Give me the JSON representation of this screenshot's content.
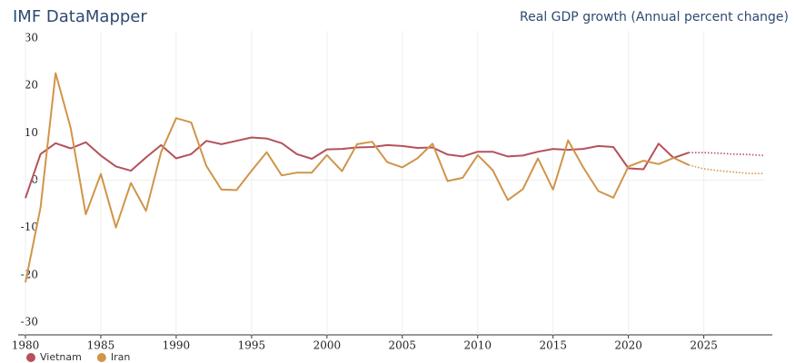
{
  "chart_data": {
    "type": "line",
    "site": "IMF DataMapper",
    "title": "Real GDP growth (Annual percent change)",
    "x": [
      1980,
      1981,
      1982,
      1983,
      1984,
      1985,
      1986,
      1987,
      1988,
      1989,
      1990,
      1991,
      1992,
      1993,
      1994,
      1995,
      1996,
      1997,
      1998,
      1999,
      2000,
      2001,
      2002,
      2003,
      2004,
      2005,
      2006,
      2007,
      2008,
      2009,
      2010,
      2011,
      2012,
      2013,
      2014,
      2015,
      2016,
      2017,
      2018,
      2019,
      2020,
      2021,
      2022,
      2023,
      2024,
      2025,
      2026,
      2027,
      2028,
      2029
    ],
    "series": [
      {
        "name": "Vietnam",
        "color": "#b5515b",
        "values": [
          -3.8,
          5.5,
          7.8,
          6.7,
          8.0,
          5.2,
          2.9,
          2.0,
          4.8,
          7.4,
          4.6,
          5.5,
          8.3,
          7.6,
          8.3,
          9.0,
          8.8,
          7.8,
          5.5,
          4.5,
          6.5,
          6.6,
          6.9,
          7.0,
          7.4,
          7.2,
          6.8,
          6.9,
          5.4,
          5.0,
          6.0,
          6.0,
          5.0,
          5.2,
          6.0,
          6.6,
          6.4,
          6.6,
          7.2,
          7.0,
          2.5,
          2.3,
          7.7,
          4.7,
          5.8,
          5.8,
          5.7,
          5.5,
          5.4,
          5.2
        ]
      },
      {
        "name": "Iran",
        "color": "#d0954a",
        "values": [
          -21.6,
          -5.8,
          22.6,
          11.0,
          -7.2,
          1.3,
          -10.0,
          -0.6,
          -6.5,
          5.9,
          13.1,
          12.2,
          3.0,
          -2.0,
          -2.1,
          2.0,
          5.9,
          1.0,
          1.6,
          1.6,
          5.3,
          1.9,
          7.6,
          8.1,
          3.8,
          2.7,
          4.6,
          7.7,
          -0.2,
          0.5,
          5.3,
          2.1,
          -4.2,
          -1.9,
          4.6,
          -2.0,
          8.4,
          2.7,
          -2.3,
          -3.7,
          2.9,
          4.1,
          3.4,
          4.7,
          3.2,
          2.4,
          2.0,
          1.7,
          1.4,
          1.4
        ]
      }
    ],
    "forecast_after": 2024,
    "xlim": [
      1980,
      2029
    ],
    "xticks": [
      1980,
      1985,
      1990,
      1995,
      2000,
      2005,
      2010,
      2015,
      2020,
      2025
    ],
    "ylim": [
      -30,
      30
    ],
    "yticks": [
      -30,
      -20,
      -10,
      0,
      10,
      20,
      30
    ],
    "grid": true
  }
}
